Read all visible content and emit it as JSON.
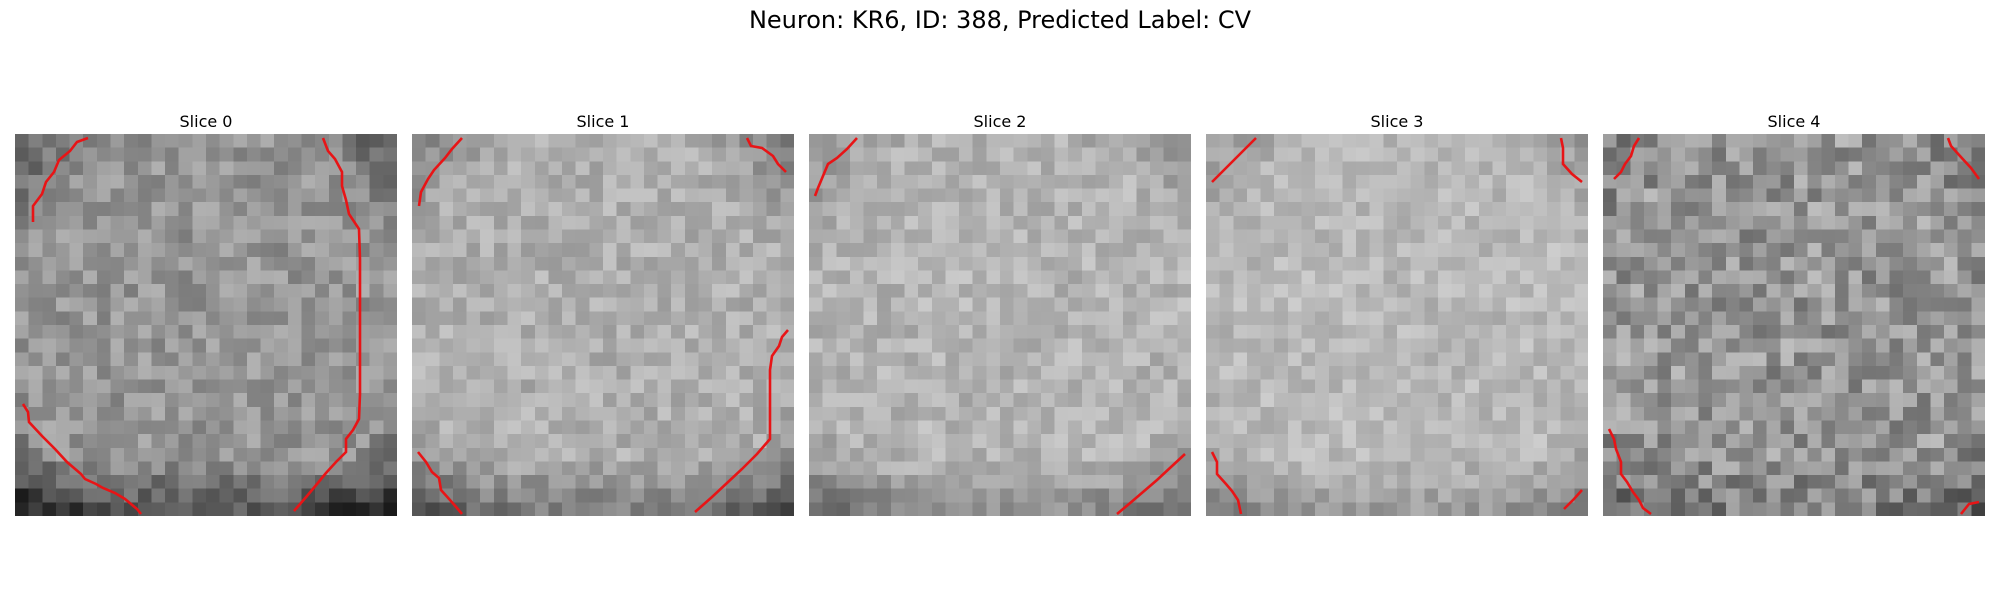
{
  "title": "Neuron: KR6, ID: 388, Predicted Label: CV",
  "panels": [
    {
      "label": "Slice 0"
    },
    {
      "label": "Slice 1"
    },
    {
      "label": "Slice 2"
    },
    {
      "label": "Slice 3"
    },
    {
      "label": "Slice 4"
    }
  ],
  "colors": {
    "contour": "#e81416",
    "background": "#ffffff",
    "colormap": "gray"
  },
  "grid_size": 28
}
